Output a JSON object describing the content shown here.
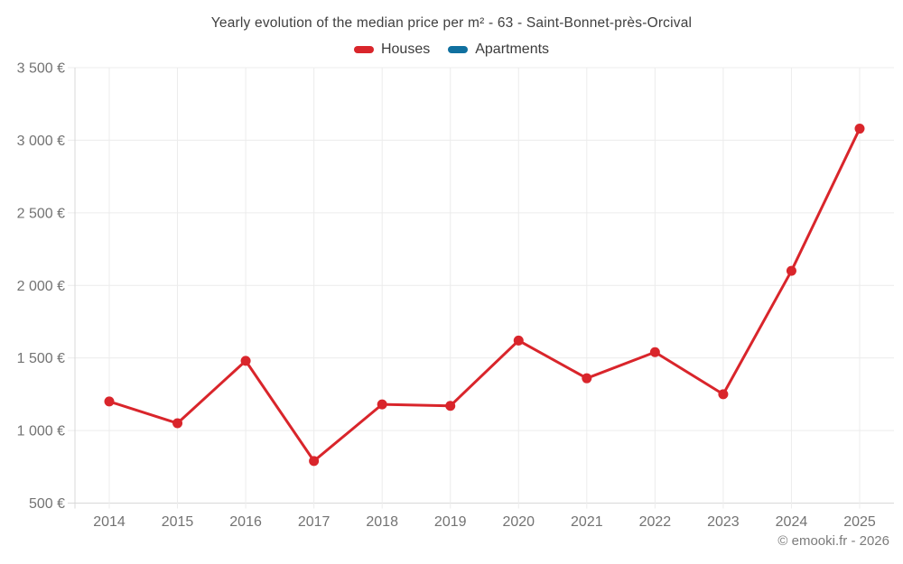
{
  "chart_data": {
    "type": "line",
    "title": "Yearly evolution of the median price per m² - 63 - Saint-Bonnet-près-Orcival",
    "categories": [
      "2014",
      "2015",
      "2016",
      "2017",
      "2018",
      "2019",
      "2020",
      "2021",
      "2022",
      "2023",
      "2024",
      "2025"
    ],
    "series": [
      {
        "name": "Houses",
        "color": "#d9252b",
        "values": [
          1200,
          1050,
          1480,
          790,
          1180,
          1170,
          1620,
          1360,
          1540,
          1250,
          2100,
          3080
        ]
      },
      {
        "name": "Apartments",
        "color": "#10709f",
        "values": []
      }
    ],
    "xlabel": "",
    "ylabel": "",
    "ylim": [
      500,
      3500
    ],
    "y_ticks": [
      {
        "value": 500,
        "label": "500 €"
      },
      {
        "value": 1000,
        "label": "1 000 €"
      },
      {
        "value": 1500,
        "label": "1 500 €"
      },
      {
        "value": 2000,
        "label": "2 000 €"
      },
      {
        "value": 2500,
        "label": "2 500 €"
      },
      {
        "value": 3000,
        "label": "3 000 €"
      },
      {
        "value": 3500,
        "label": "3 500 €"
      }
    ],
    "grid": true,
    "legend_position": "top"
  },
  "colors": {
    "grid_line": "#ececec",
    "axis_line": "#d8d8d8",
    "tick_text": "#737373",
    "title_text": "#3f3f3f"
  },
  "footer": {
    "text": "© emooki.fr - 2026"
  }
}
